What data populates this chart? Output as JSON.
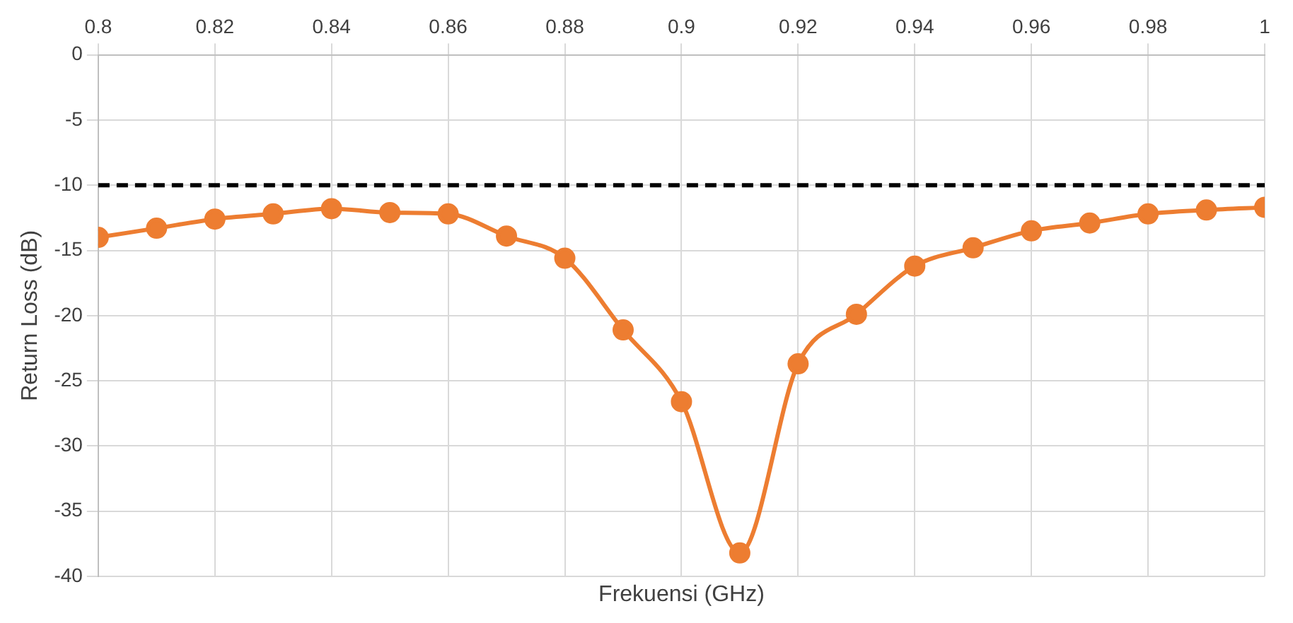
{
  "chart_data": {
    "type": "line",
    "xlabel": "Frekuensi (GHz)",
    "ylabel": "Return Loss (dB)",
    "x": [
      0.8,
      0.81,
      0.82,
      0.83,
      0.84,
      0.85,
      0.86,
      0.87,
      0.88,
      0.89,
      0.9,
      0.91,
      0.92,
      0.93,
      0.94,
      0.95,
      0.96,
      0.97,
      0.98,
      0.99,
      1.0
    ],
    "series": [
      {
        "color": "#ed7d31",
        "values": [
          -14.0,
          -13.3,
          -12.6,
          -12.2,
          -11.8,
          -12.1,
          -12.2,
          -13.9,
          -15.6,
          -21.1,
          -26.6,
          -38.2,
          -23.7,
          -19.9,
          -16.2,
          -14.8,
          -13.5,
          -12.9,
          -12.2,
          -11.9,
          -11.7
        ]
      }
    ],
    "xlim": [
      0.8,
      1.0
    ],
    "xticks": [
      {
        "value": 0.8,
        "label": "0.8"
      },
      0.82,
      0.84,
      0.86,
      0.88,
      {
        "value": 0.9,
        "label": "0.9"
      },
      0.92,
      0.94,
      0.96,
      0.98,
      {
        "value": 1.0,
        "label": "1"
      }
    ],
    "ylim": [
      -40,
      0
    ],
    "yticks": [
      -40,
      -35,
      -30,
      -25,
      -20,
      -15,
      -10,
      -5,
      0
    ],
    "ref_lines": [
      {
        "axis": "y",
        "value": -10,
        "color": "#000000",
        "line_style": "dashed"
      }
    ],
    "grid": true,
    "legend": false,
    "marker": "circle",
    "line_style": "solid"
  }
}
